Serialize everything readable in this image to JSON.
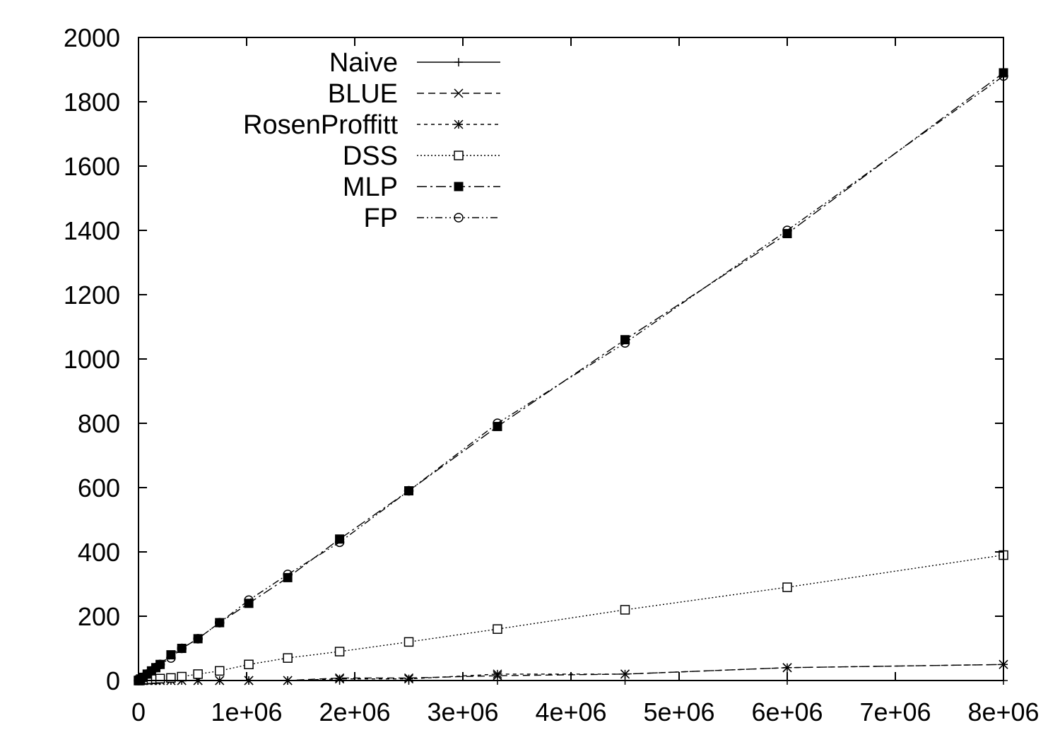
{
  "chart_data": {
    "type": "line",
    "title": "",
    "xlabel": "",
    "ylabel": "",
    "xlim": [
      0,
      8000000
    ],
    "ylim": [
      0,
      2000
    ],
    "x_ticks": [
      0,
      1000000,
      2000000,
      3000000,
      4000000,
      5000000,
      6000000,
      7000000,
      8000000
    ],
    "x_tick_labels": [
      "0",
      "1e+06",
      "2e+06",
      "3e+06",
      "4e+06",
      "5e+06",
      "6e+06",
      "7e+06",
      "8e+06"
    ],
    "y_ticks": [
      0,
      200,
      400,
      600,
      800,
      1000,
      1200,
      1400,
      1600,
      1800,
      2000
    ],
    "y_tick_labels": [
      "0",
      "200",
      "400",
      "600",
      "800",
      "1000",
      "1200",
      "1400",
      "1600",
      "1800",
      "2000"
    ],
    "grid": false,
    "legend_position": "top-left",
    "series": [
      {
        "name": "Naive",
        "marker": "plus",
        "dash": "solid",
        "points": [
          [
            0,
            0
          ],
          [
            10000,
            0
          ],
          [
            20000,
            0
          ],
          [
            40000,
            0
          ],
          [
            80000,
            0
          ],
          [
            120000,
            0
          ],
          [
            160000,
            0
          ],
          [
            200000,
            0
          ],
          [
            300000,
            0
          ],
          [
            400000,
            0
          ],
          [
            550000,
            0
          ],
          [
            750000,
            0
          ],
          [
            1020000,
            0
          ],
          [
            1380000,
            0
          ],
          [
            1860000,
            0
          ],
          [
            2500000,
            0
          ],
          [
            3320000,
            0
          ],
          [
            4500000,
            0
          ],
          [
            6000000,
            0
          ],
          [
            8000000,
            0
          ]
        ]
      },
      {
        "name": "BLUE",
        "marker": "cross",
        "dash": "dashed",
        "points": [
          [
            0,
            0
          ],
          [
            10000,
            0
          ],
          [
            20000,
            0
          ],
          [
            40000,
            0
          ],
          [
            80000,
            0
          ],
          [
            120000,
            0
          ],
          [
            160000,
            0
          ],
          [
            200000,
            0
          ],
          [
            300000,
            0
          ],
          [
            400000,
            0
          ],
          [
            550000,
            0
          ],
          [
            750000,
            0
          ],
          [
            1020000,
            0
          ],
          [
            1380000,
            0
          ],
          [
            1860000,
            8
          ],
          [
            2500000,
            8
          ],
          [
            3320000,
            15
          ],
          [
            4500000,
            20
          ],
          [
            6000000,
            40
          ],
          [
            8000000,
            50
          ]
        ]
      },
      {
        "name": "RosenProffitt",
        "marker": "star",
        "dash": "short-dashed",
        "points": [
          [
            0,
            0
          ],
          [
            10000,
            0
          ],
          [
            20000,
            0
          ],
          [
            40000,
            0
          ],
          [
            80000,
            0
          ],
          [
            120000,
            0
          ],
          [
            160000,
            0
          ],
          [
            200000,
            0
          ],
          [
            300000,
            0
          ],
          [
            400000,
            0
          ],
          [
            550000,
            0
          ],
          [
            750000,
            0
          ],
          [
            1020000,
            0
          ],
          [
            1380000,
            0
          ],
          [
            1860000,
            5
          ],
          [
            2500000,
            5
          ],
          [
            3320000,
            20
          ],
          [
            4500000,
            20
          ],
          [
            6000000,
            40
          ],
          [
            8000000,
            50
          ]
        ]
      },
      {
        "name": "DSS",
        "marker": "open-square",
        "dash": "dotted",
        "points": [
          [
            0,
            0
          ],
          [
            10000,
            0
          ],
          [
            20000,
            1
          ],
          [
            40000,
            2
          ],
          [
            80000,
            3
          ],
          [
            120000,
            4
          ],
          [
            160000,
            5
          ],
          [
            200000,
            6
          ],
          [
            300000,
            8
          ],
          [
            400000,
            12
          ],
          [
            550000,
            20
          ],
          [
            750000,
            30
          ],
          [
            1020000,
            50
          ],
          [
            1380000,
            70
          ],
          [
            1860000,
            90
          ],
          [
            2500000,
            120
          ],
          [
            3320000,
            160
          ],
          [
            4500000,
            220
          ],
          [
            6000000,
            290
          ],
          [
            8000000,
            390
          ]
        ]
      },
      {
        "name": "MLP",
        "marker": "filled-square",
        "dash": "dash-dot",
        "points": [
          [
            0,
            0
          ],
          [
            10000,
            2
          ],
          [
            20000,
            5
          ],
          [
            40000,
            10
          ],
          [
            80000,
            20
          ],
          [
            120000,
            30
          ],
          [
            160000,
            40
          ],
          [
            200000,
            50
          ],
          [
            300000,
            80
          ],
          [
            400000,
            100
          ],
          [
            550000,
            130
          ],
          [
            750000,
            180
          ],
          [
            1020000,
            240
          ],
          [
            1380000,
            320
          ],
          [
            1860000,
            440
          ],
          [
            2500000,
            590
          ],
          [
            3320000,
            790
          ],
          [
            4500000,
            1060
          ],
          [
            6000000,
            1390
          ],
          [
            8000000,
            1890
          ]
        ]
      },
      {
        "name": "FP",
        "marker": "open-circle",
        "dash": "dash-dot-dot",
        "points": [
          [
            0,
            0
          ],
          [
            10000,
            2
          ],
          [
            20000,
            5
          ],
          [
            40000,
            10
          ],
          [
            80000,
            20
          ],
          [
            120000,
            30
          ],
          [
            160000,
            40
          ],
          [
            200000,
            50
          ],
          [
            300000,
            70
          ],
          [
            400000,
            100
          ],
          [
            550000,
            130
          ],
          [
            750000,
            180
          ],
          [
            1020000,
            250
          ],
          [
            1380000,
            330
          ],
          [
            1860000,
            430
          ],
          [
            2500000,
            590
          ],
          [
            3320000,
            800
          ],
          [
            4500000,
            1050
          ],
          [
            6000000,
            1400
          ],
          [
            8000000,
            1880
          ]
        ]
      }
    ]
  }
}
